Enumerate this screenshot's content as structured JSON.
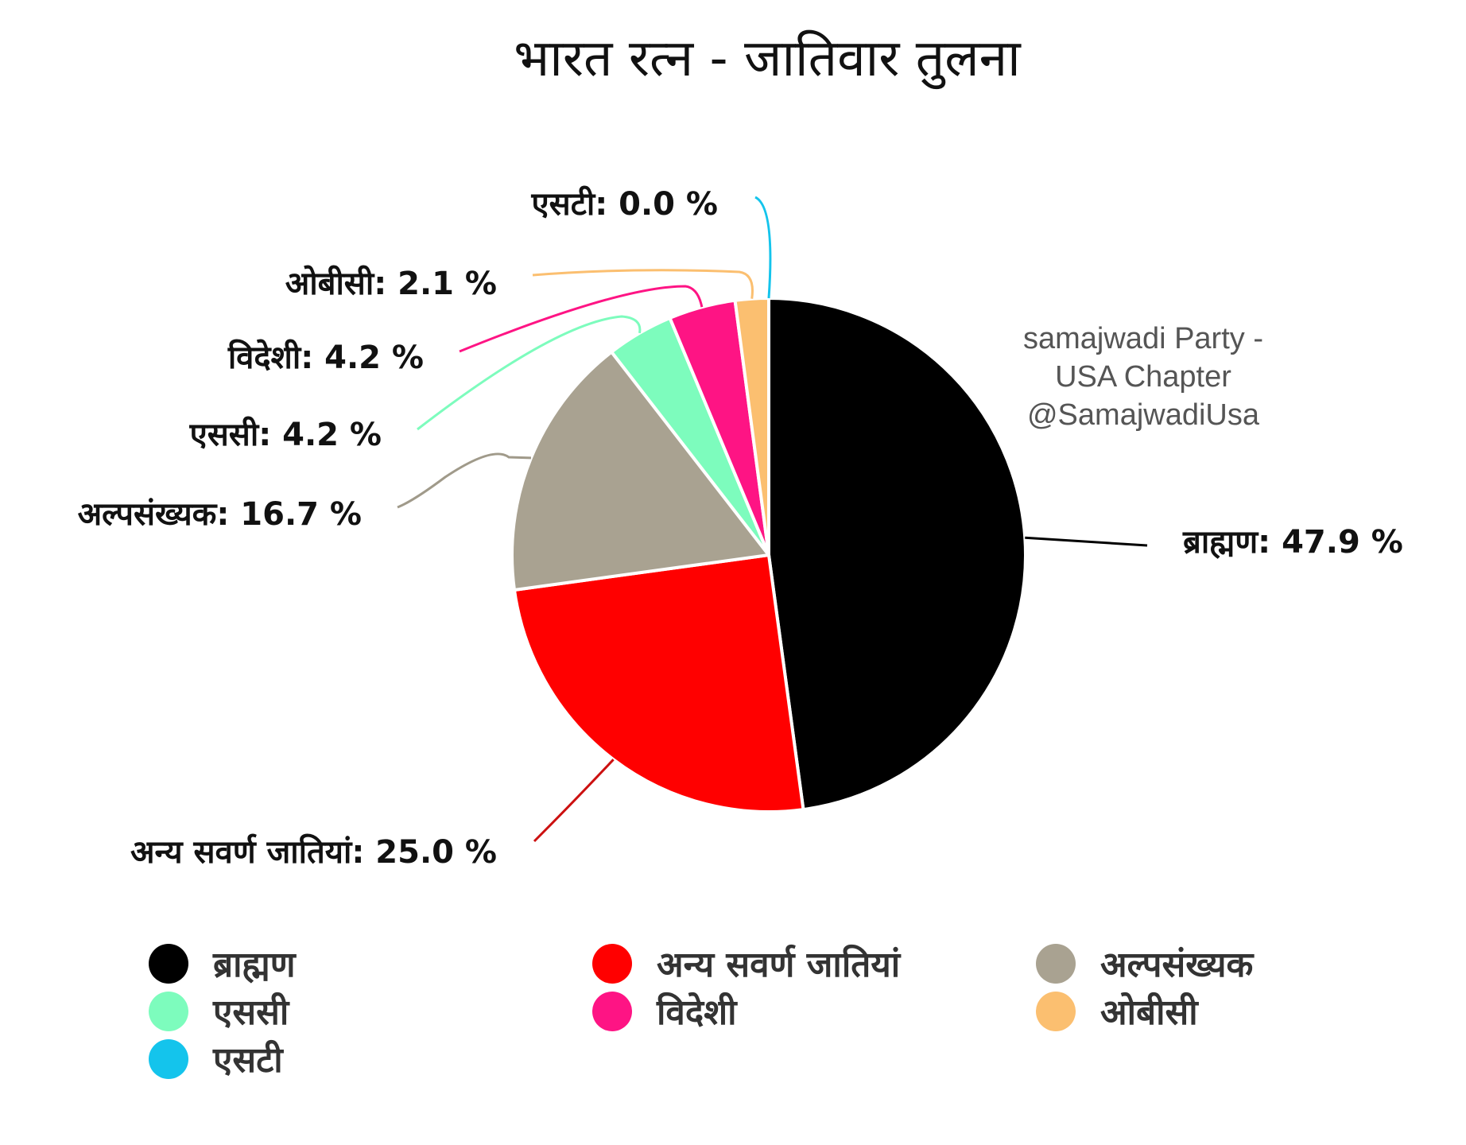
{
  "chart_data": {
    "type": "pie",
    "title": "भारत रत्न - जातिवार तुलना",
    "slices": [
      {
        "name": "ब्राह्मण",
        "value": 47.9,
        "label": "ब्राह्मण: 47.9 %",
        "color": "#000000"
      },
      {
        "name": "अन्य सवर्ण जातियां",
        "value": 25.0,
        "label": "अन्य सवर्ण जातियां: 25.0 %",
        "color": "#ff0000"
      },
      {
        "name": "अल्पसंख्यक",
        "value": 16.7,
        "label": "अल्पसंख्यक: 16.7 %",
        "color": "#a9a291"
      },
      {
        "name": "एससी",
        "value": 4.2,
        "label": "एससी: 4.2 %",
        "color": "#7dfcbd"
      },
      {
        "name": "विदेशी",
        "value": 4.2,
        "label": "विदेशी: 4.2 %",
        "color": "#fe1484"
      },
      {
        "name": "ओबीसी",
        "value": 2.1,
        "label": "ओबीसी: 2.1 %",
        "color": "#fbbf70"
      },
      {
        "name": "एसटी",
        "value": 0.0,
        "label": "एसटी: 0.0 %",
        "color": "#14c4ec"
      }
    ],
    "legend_position": "bottom"
  },
  "watermark": {
    "line1": "samajwadi Party -",
    "line2": "USA Chapter",
    "line3": "@SamajwadiUsa"
  }
}
